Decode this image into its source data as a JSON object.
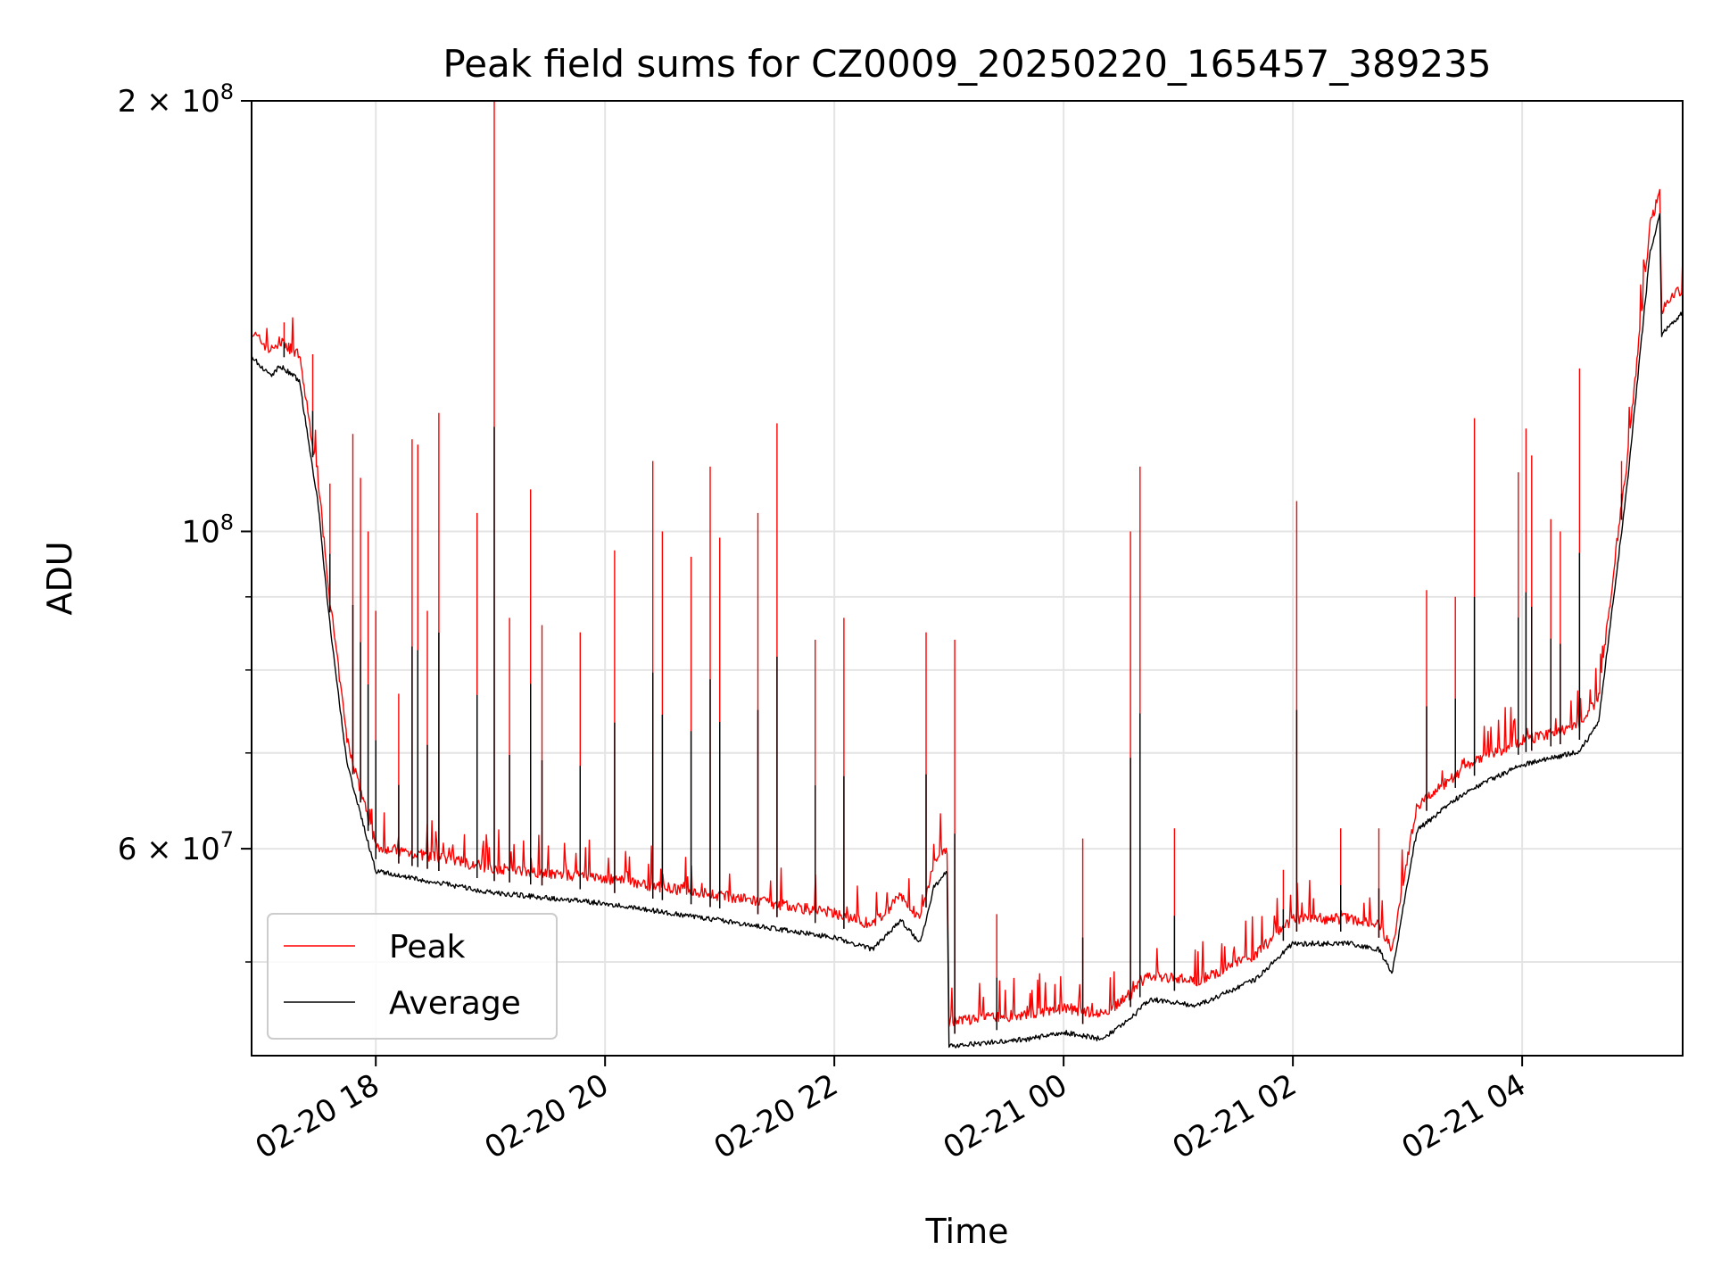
{
  "chart_data": {
    "type": "line",
    "title": "Peak field sums for CZ0009_20250220_165457_389235",
    "xlabel": "Time",
    "ylabel": "ADU",
    "y_scale": "log",
    "ylim": [
      43000000,
      200000000
    ],
    "xlim": [
      "2025-02-20 16:55",
      "2025-02-21 05:24"
    ],
    "grid": true,
    "legend_position": "lower-left",
    "x_ticks": [
      {
        "t": "2025-02-20 18:00",
        "label": "02-20 18"
      },
      {
        "t": "2025-02-20 20:00",
        "label": "02-20 20"
      },
      {
        "t": "2025-02-20 22:00",
        "label": "02-20 22"
      },
      {
        "t": "2025-02-21 00:00",
        "label": "02-21 00"
      },
      {
        "t": "2025-02-21 02:00",
        "label": "02-21 02"
      },
      {
        "t": "2025-02-21 04:00",
        "label": "02-21 04"
      }
    ],
    "y_major_ticks": [
      {
        "value": 60000000,
        "base": "6 × 10",
        "exp": "7"
      },
      {
        "value": 100000000,
        "base": "10",
        "exp": "8"
      },
      {
        "value": 200000000,
        "base": "2 × 10",
        "exp": "8"
      }
    ],
    "y_minor_ticks": [
      50000000,
      70000000,
      80000000,
      90000000
    ],
    "series": [
      {
        "name": "Peak",
        "color": "#ff0000",
        "baseline": [
          [
            "2025-02-20 16:55",
            135000000
          ],
          [
            "2025-02-20 17:05",
            131000000
          ],
          [
            "2025-02-20 17:10",
            133000000
          ],
          [
            "2025-02-20 17:20",
            130000000
          ],
          [
            "2025-02-20 17:30",
            106000000
          ],
          [
            "2025-02-20 17:35",
            90000000
          ],
          [
            "2025-02-20 17:45",
            70000000
          ],
          [
            "2025-02-20 18:00",
            59000000
          ],
          [
            "2025-02-20 19:00",
            57000000
          ],
          [
            "2025-02-20 20:00",
            56000000
          ],
          [
            "2025-02-20 21:00",
            54500000
          ],
          [
            "2025-02-20 22:00",
            53000000
          ],
          [
            "2025-02-20 22:20",
            52000000
          ],
          [
            "2025-02-20 22:35",
            54500000
          ],
          [
            "2025-02-20 22:45",
            52500000
          ],
          [
            "2025-02-20 22:52",
            57500000
          ],
          [
            "2025-02-20 22:59",
            59000000
          ],
          [
            "2025-02-20 23:00",
            44500000
          ],
          [
            "2025-02-20 23:40",
            45000000
          ],
          [
            "2025-02-21 00:00",
            45500000
          ],
          [
            "2025-02-21 00:20",
            45000000
          ],
          [
            "2025-02-21 00:35",
            46500000
          ],
          [
            "2025-02-21 00:45",
            48000000
          ],
          [
            "2025-02-21 01:10",
            47500000
          ],
          [
            "2025-02-21 01:40",
            49500000
          ],
          [
            "2025-02-21 02:00",
            52500000
          ],
          [
            "2025-02-21 02:30",
            52500000
          ],
          [
            "2025-02-21 02:45",
            52000000
          ],
          [
            "2025-02-21 02:52",
            50000000
          ],
          [
            "2025-02-21 03:00",
            58000000
          ],
          [
            "2025-02-21 03:05",
            63000000
          ],
          [
            "2025-02-21 03:30",
            67000000
          ],
          [
            "2025-02-21 04:00",
            70000000
          ],
          [
            "2025-02-21 04:30",
            71500000
          ],
          [
            "2025-02-21 04:40",
            75000000
          ],
          [
            "2025-02-21 04:55",
            110000000
          ],
          [
            "2025-02-21 05:07",
            160000000
          ],
          [
            "2025-02-21 05:12",
            170000000
          ],
          [
            "2025-02-21 05:13",
            140000000
          ],
          [
            "2025-02-21 05:24",
            145000000
          ]
        ],
        "spikes": [
          [
            "2025-02-20 17:12",
            140000000
          ],
          [
            "2025-02-20 17:27",
            133000000
          ],
          [
            "2025-02-20 17:36",
            108000000
          ],
          [
            "2025-02-20 17:48",
            117000000
          ],
          [
            "2025-02-20 17:52",
            109000000
          ],
          [
            "2025-02-20 17:56",
            100000000
          ],
          [
            "2025-02-20 18:00",
            88000000
          ],
          [
            "2025-02-20 18:12",
            77000000
          ],
          [
            "2025-02-20 18:19",
            116000000
          ],
          [
            "2025-02-20 18:22",
            115000000
          ],
          [
            "2025-02-20 18:27",
            88000000
          ],
          [
            "2025-02-20 18:33",
            121000000
          ],
          [
            "2025-02-20 18:53",
            103000000
          ],
          [
            "2025-02-20 19:02",
            200000000
          ],
          [
            "2025-02-20 19:10",
            87000000
          ],
          [
            "2025-02-20 19:21",
            107000000
          ],
          [
            "2025-02-20 19:27",
            86000000
          ],
          [
            "2025-02-20 19:47",
            85000000
          ],
          [
            "2025-02-20 20:05",
            97000000
          ],
          [
            "2025-02-20 20:25",
            112000000
          ],
          [
            "2025-02-20 20:30",
            100000000
          ],
          [
            "2025-02-20 20:45",
            96000000
          ],
          [
            "2025-02-20 20:55",
            111000000
          ],
          [
            "2025-02-20 21:00",
            99000000
          ],
          [
            "2025-02-20 21:20",
            103000000
          ],
          [
            "2025-02-20 21:30",
            119000000
          ],
          [
            "2025-02-20 21:50",
            84000000
          ],
          [
            "2025-02-20 22:05",
            87000000
          ],
          [
            "2025-02-20 22:48",
            85000000
          ],
          [
            "2025-02-20 23:03",
            84000000
          ],
          [
            "2025-02-20 23:25",
            54000000
          ],
          [
            "2025-02-21 00:10",
            61000000
          ],
          [
            "2025-02-21 00:35",
            100000000
          ],
          [
            "2025-02-21 00:40",
            111000000
          ],
          [
            "2025-02-21 00:58",
            62000000
          ],
          [
            "2025-02-21 01:55",
            58000000
          ],
          [
            "2025-02-21 02:02",
            105000000
          ],
          [
            "2025-02-21 02:25",
            62000000
          ],
          [
            "2025-02-21 02:45",
            62000000
          ],
          [
            "2025-02-21 03:10",
            91000000
          ],
          [
            "2025-02-21 03:25",
            90000000
          ],
          [
            "2025-02-21 03:35",
            120000000
          ],
          [
            "2025-02-21 03:58",
            110000000
          ],
          [
            "2025-02-21 04:02",
            118000000
          ],
          [
            "2025-02-21 04:05",
            113000000
          ],
          [
            "2025-02-21 04:15",
            102000000
          ],
          [
            "2025-02-21 04:20",
            100000000
          ],
          [
            "2025-02-21 04:30",
            130000000
          ],
          [
            "2025-02-21 04:52",
            112000000
          ]
        ]
      },
      {
        "name": "Average",
        "color": "#000000",
        "offset_ratio": 0.985,
        "spike_ratio": 0.78
      }
    ]
  }
}
